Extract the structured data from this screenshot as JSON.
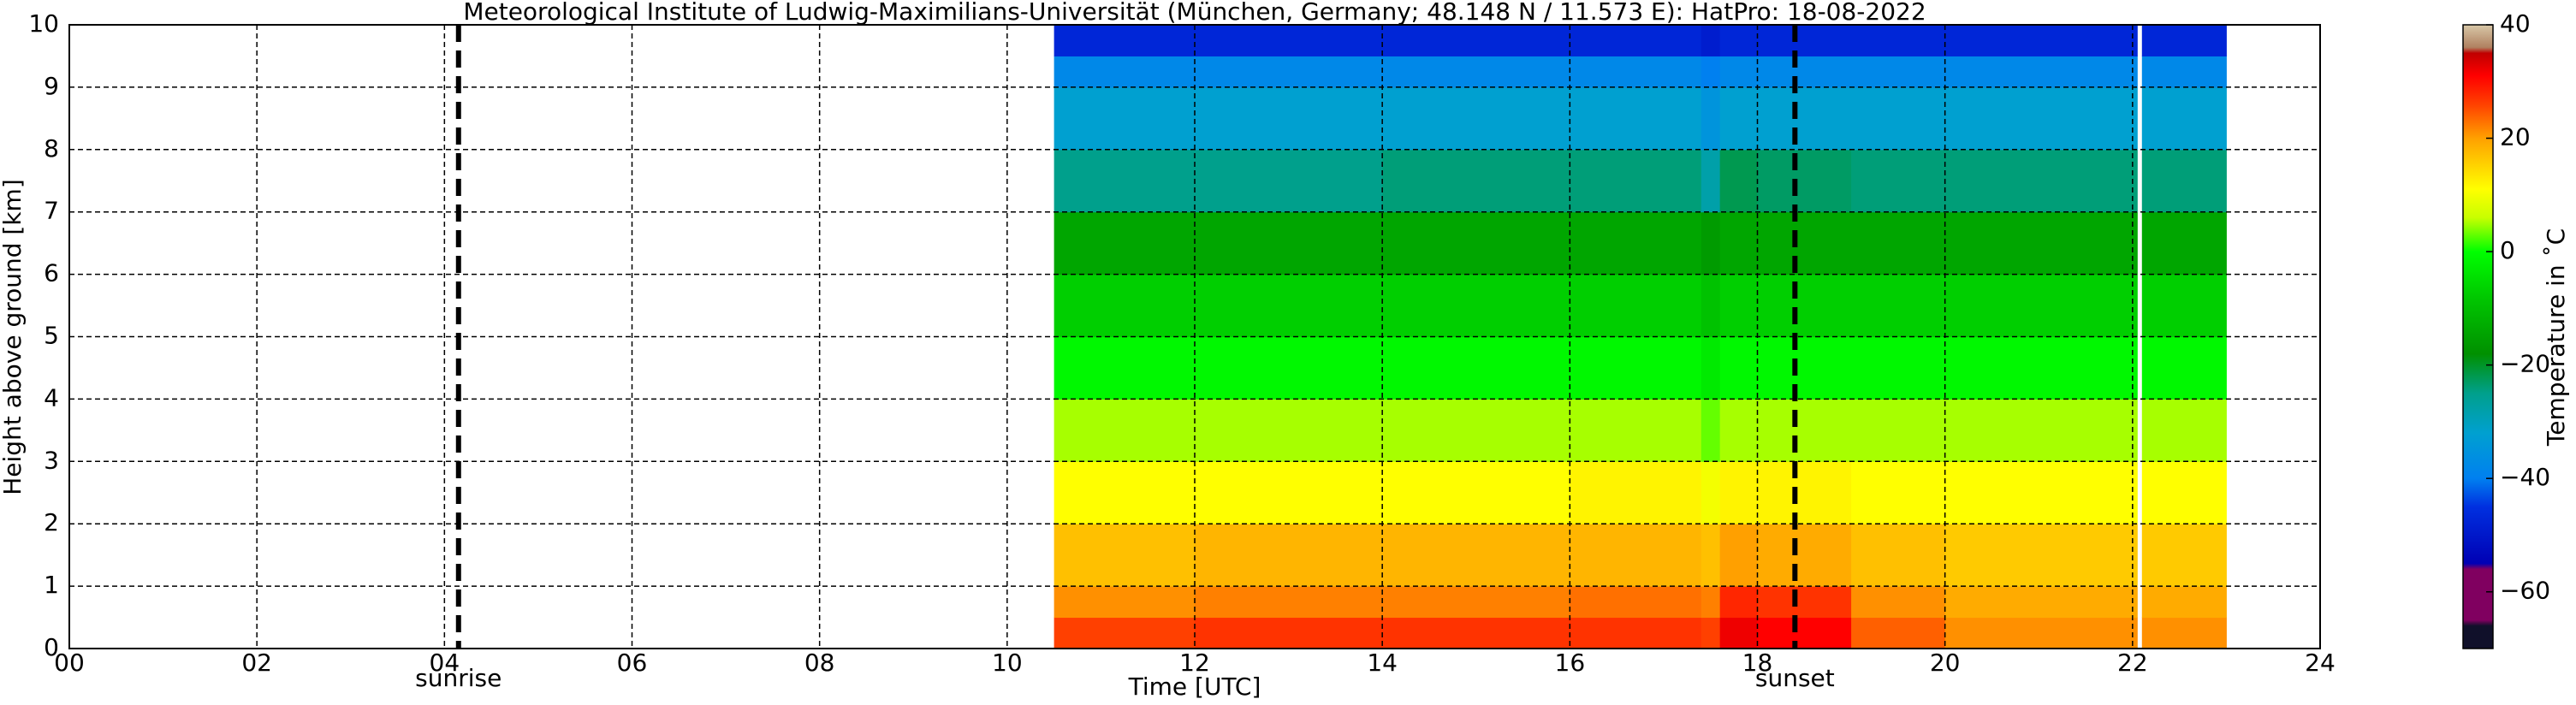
{
  "chart_data": {
    "type": "heatmap",
    "title": "Meteorological Institute of Ludwig-Maximilians-Universität (München, Germany; 48.148 N / 11.573 E):    HatPro: 18-08-2022",
    "x_label": "Time [UTC]",
    "y_label": "Height above ground [km]",
    "xlim": [
      0,
      24
    ],
    "ylim": [
      0,
      10
    ],
    "xticks": [
      {
        "value": 0,
        "label": "00"
      },
      {
        "value": 2,
        "label": "02"
      },
      {
        "value": 4,
        "label": "04"
      },
      {
        "value": 6,
        "label": "06"
      },
      {
        "value": 8,
        "label": "08"
      },
      10,
      12,
      14,
      16,
      18,
      20,
      22,
      24
    ],
    "yticks": [
      0,
      1,
      2,
      3,
      4,
      5,
      6,
      7,
      8,
      9,
      10
    ],
    "grid": true,
    "x_edges": [
      10.5,
      12,
      14,
      16,
      17.4,
      17.6,
      18,
      19,
      20,
      22.05,
      22.1,
      23
    ],
    "y_edges": [
      0,
      0.5,
      1,
      2,
      3,
      4,
      5,
      6,
      7,
      8,
      9,
      9.5,
      10
    ],
    "values": [
      [
        26,
        27,
        27,
        27,
        26,
        32,
        31,
        24,
        21,
        null,
        21
      ],
      [
        21,
        22,
        22,
        23,
        22,
        28,
        27,
        21,
        19,
        null,
        19
      ],
      [
        17,
        18,
        18,
        18,
        17,
        20,
        19,
        17,
        16,
        null,
        16
      ],
      [
        11,
        11,
        11,
        12,
        10,
        12,
        12,
        11,
        11,
        null,
        11
      ],
      [
        5,
        5,
        5,
        5,
        3,
        5,
        5,
        5,
        5,
        null,
        5
      ],
      [
        -1,
        -1,
        -1,
        -1,
        -3,
        -1,
        -1,
        -1,
        -1,
        null,
        -1
      ],
      [
        -7,
        -7,
        -7,
        -7,
        -9,
        -7,
        -7,
        -7,
        -7,
        null,
        -7
      ],
      [
        -14,
        -14,
        -14,
        -14,
        -16,
        -14,
        -14,
        -14,
        -14,
        null,
        -14
      ],
      [
        -25,
        -25,
        -24,
        -24,
        -28,
        -22,
        -23,
        -24,
        -24,
        null,
        -24
      ],
      [
        -32,
        -32,
        -32,
        -32,
        -35,
        -32,
        -32,
        -32,
        -32,
        null,
        -32
      ],
      [
        -38,
        -38,
        -38,
        -38,
        -40,
        -38,
        -38,
        -38,
        -38,
        null,
        -38
      ],
      [
        -47,
        -47,
        -47,
        -47,
        -49,
        -47,
        -47,
        -47,
        -47,
        null,
        -47
      ]
    ],
    "annotations": [
      {
        "label": "sunrise",
        "x": 4.15
      },
      {
        "label": "sunset",
        "x": 18.4
      }
    ],
    "colorbar": {
      "label": "Temperature in ˚C",
      "clim": [
        -70,
        40
      ],
      "ticks": [
        {
          "value": -60,
          "label": "−60"
        },
        {
          "value": -40,
          "label": "−40"
        },
        {
          "value": -20,
          "label": "−20"
        },
        0,
        20,
        40
      ],
      "colormap": [
        {
          "value": -70,
          "color": "#10102a"
        },
        {
          "value": -66,
          "color": "#10102a"
        },
        {
          "value": -65,
          "color": "#800060"
        },
        {
          "value": -56,
          "color": "#800060"
        },
        {
          "value": -55,
          "color": "#0000b4"
        },
        {
          "value": -45,
          "color": "#0030e0"
        },
        {
          "value": -40,
          "color": "#0080f0"
        },
        {
          "value": -32,
          "color": "#00a0d0"
        },
        {
          "value": -25,
          "color": "#00a08c"
        },
        {
          "value": -18,
          "color": "#009000"
        },
        {
          "value": -8,
          "color": "#00c800"
        },
        {
          "value": 0,
          "color": "#00ff00"
        },
        {
          "value": 6,
          "color": "#c8ff00"
        },
        {
          "value": 11,
          "color": "#ffff00"
        },
        {
          "value": 20,
          "color": "#ffa000"
        },
        {
          "value": 26,
          "color": "#ff4000"
        },
        {
          "value": 31,
          "color": "#ff0000"
        },
        {
          "value": 35,
          "color": "#c00000"
        },
        {
          "value": 36,
          "color": "#b08060"
        },
        {
          "value": 40,
          "color": "#d8c8a8"
        }
      ]
    }
  }
}
